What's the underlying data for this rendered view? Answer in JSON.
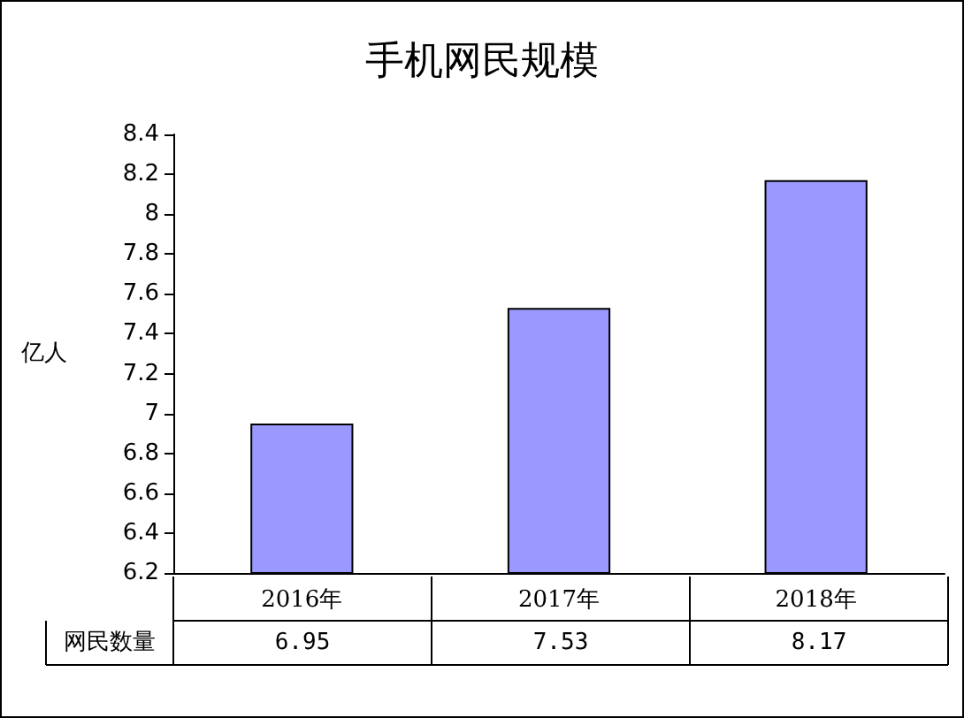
{
  "chart_data": {
    "type": "bar",
    "title": "手机网民规模",
    "ylabel": "亿人",
    "categories": [
      "2016年",
      "2017年",
      "2018年"
    ],
    "series": [
      {
        "name": "网民数量",
        "color": "#9999ff",
        "values": [
          6.95,
          7.53,
          8.17
        ]
      }
    ],
    "ylim": [
      6.2,
      8.4
    ],
    "yticks": [
      6.2,
      6.4,
      6.6,
      6.8,
      7,
      7.2,
      7.4,
      7.6,
      7.8,
      8,
      8.2,
      8.4
    ],
    "grid": false,
    "legend": "bottom left",
    "data_labels": true
  }
}
